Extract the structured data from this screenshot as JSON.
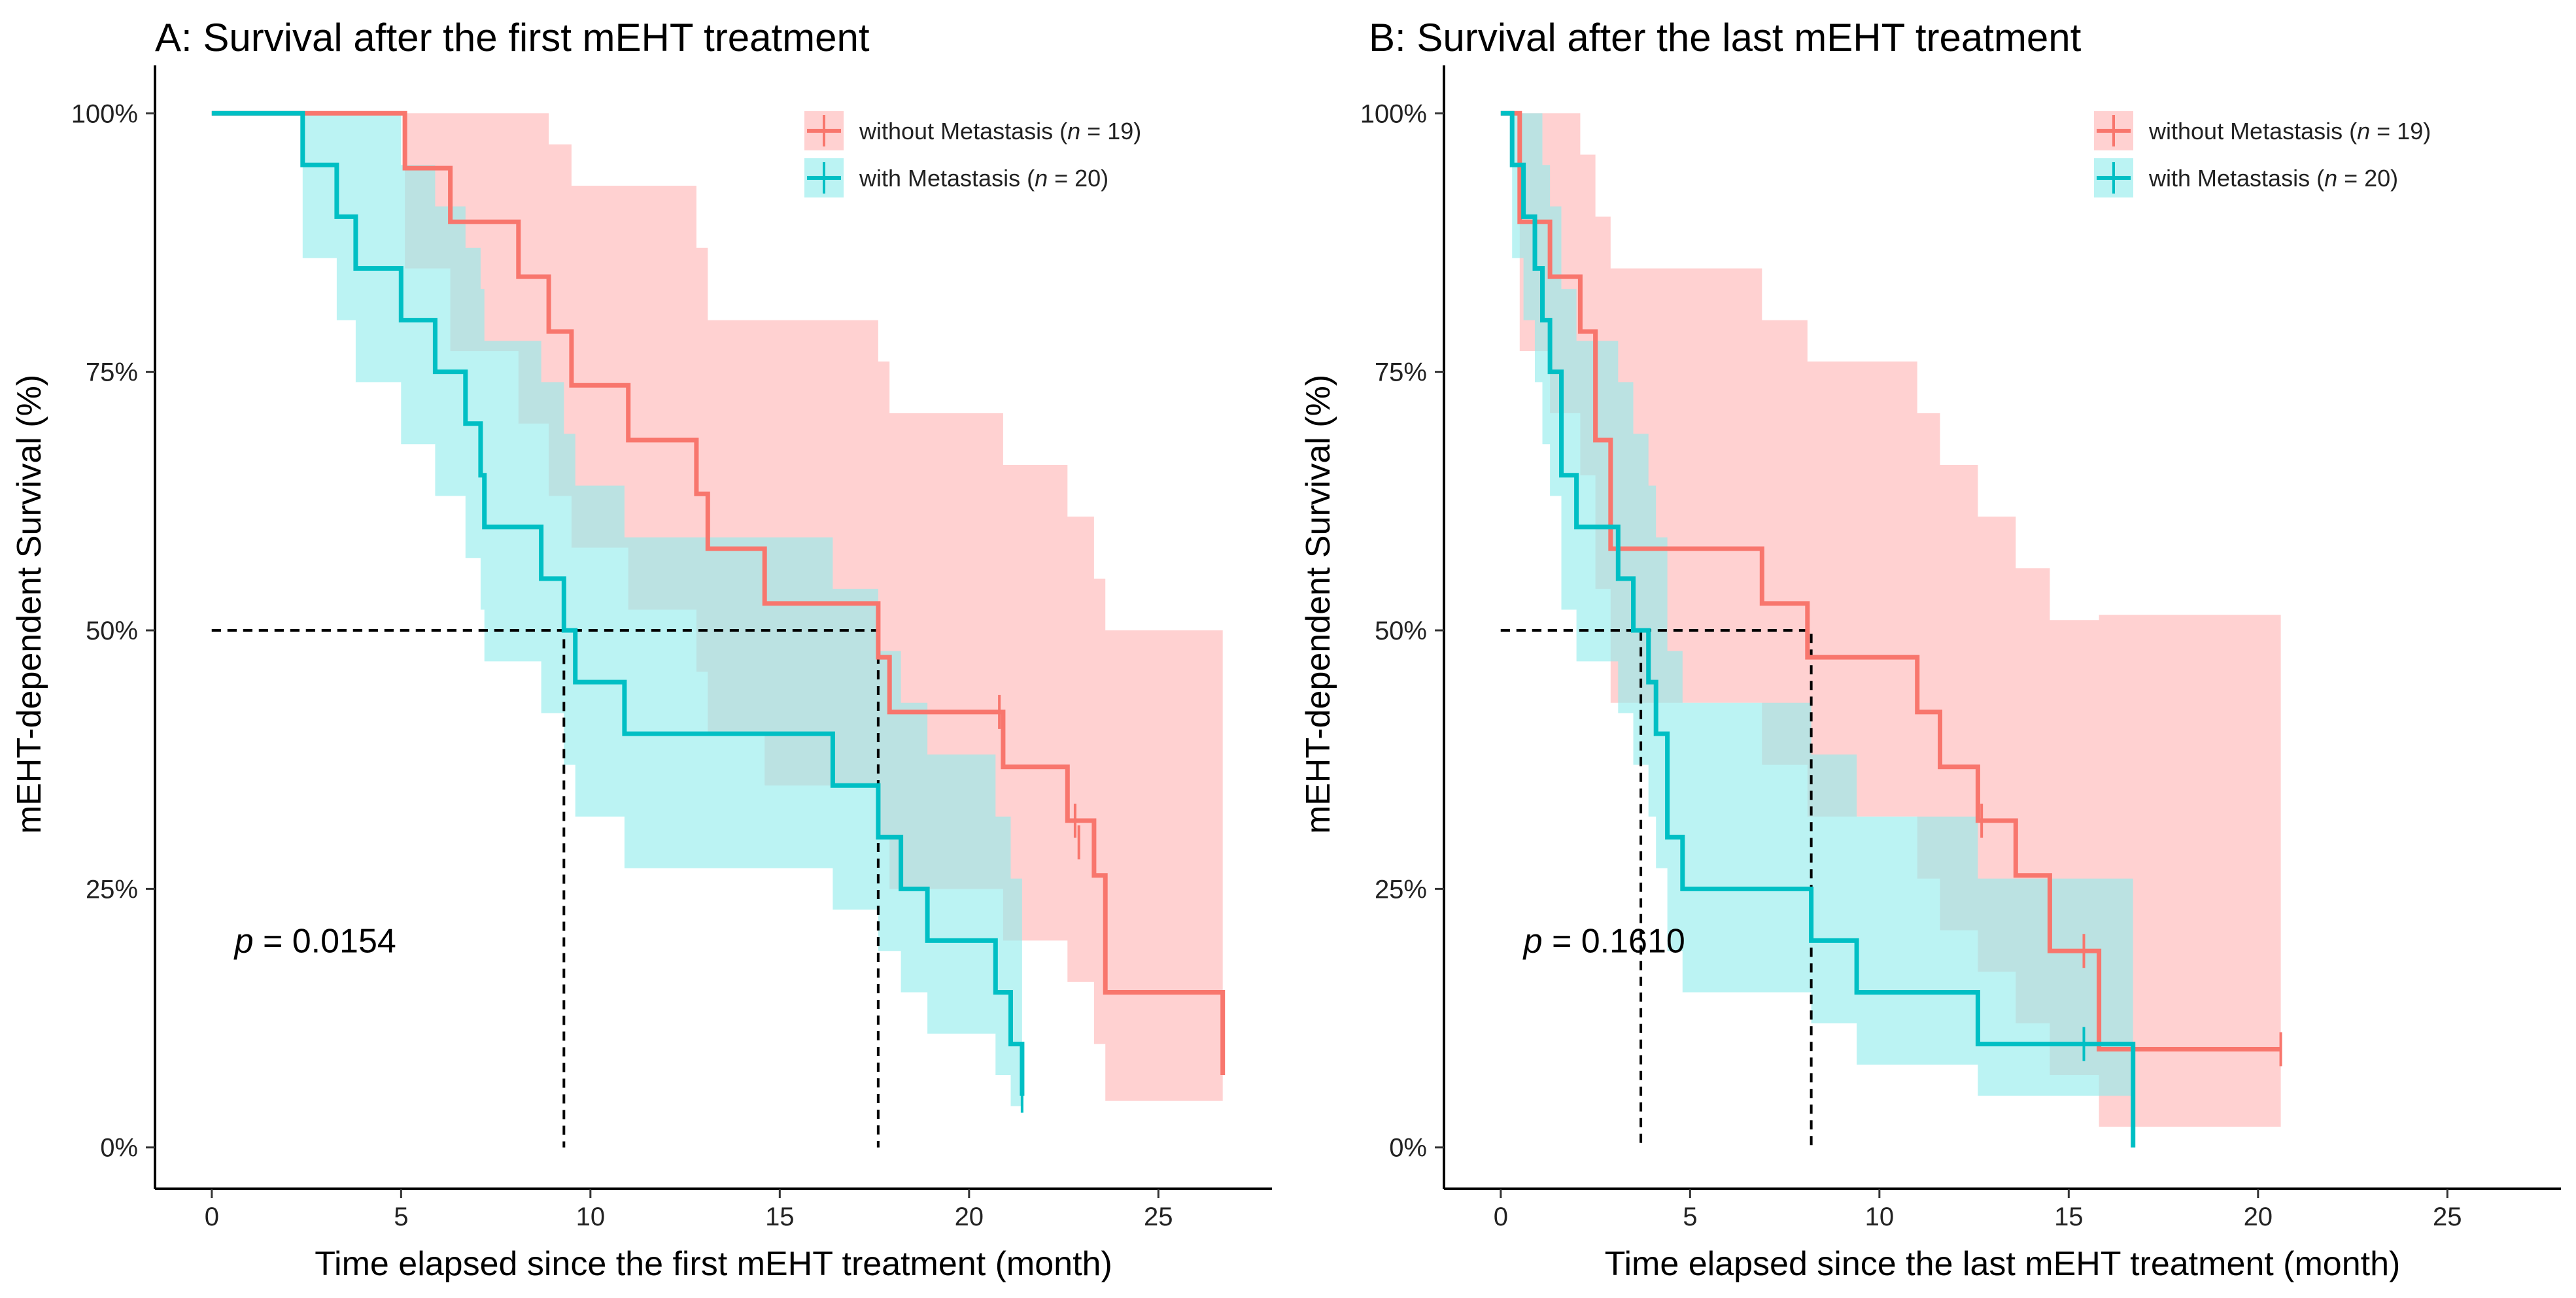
{
  "colors": {
    "without": "#F8766D",
    "with": "#00BFC4",
    "without_band": "#FFCCCC",
    "with_band": "#92EBEC",
    "overlap": "#A9C8C8",
    "median_line": "#000000"
  },
  "chart_data": [
    {
      "type": "line",
      "subtype": "kaplan-meier",
      "title": "A: Survival after the first mEHT treatment",
      "xlabel": "Time elapsed since the first mEHT treatment (month)",
      "ylabel": "mEHT-dependent Survival (%)",
      "xlim": [
        -1.5,
        28
      ],
      "ylim": [
        -4,
        104
      ],
      "xticks": [
        0,
        5,
        10,
        15,
        20,
        25
      ],
      "xtick_labels": [
        "0",
        "5",
        "10",
        "15",
        "20",
        "25"
      ],
      "yticks": [
        0,
        25,
        50,
        75,
        100
      ],
      "ytick_labels": [
        "0%",
        "25%",
        "50%",
        "75%",
        "100%"
      ],
      "p_value": {
        "label": "p",
        "text": " = 0.0154"
      },
      "median_lines": [
        {
          "x": 9.3,
          "y": 50
        },
        {
          "x": 17.6,
          "y": 50
        }
      ],
      "series": [
        {
          "name": "without Metastasis",
          "legend_prefix": "without Metastasis (",
          "legend_n": "n",
          "legend_suffix": " = 19)",
          "color_key": "without",
          "band_key": "without_band",
          "x": [
            0,
            4.9,
            5.1,
            6.3,
            8.1,
            8.9,
            9.1,
            9.5,
            11.0,
            12.8,
            13.1,
            14.6,
            17.6,
            17.9,
            20.8,
            20.9,
            22.6,
            22.9,
            23.3,
            23.6,
            26.7
          ],
          "y": [
            100,
            100,
            94.7,
            89.5,
            84.2,
            78.9,
            78.9,
            73.7,
            68.4,
            63.2,
            57.9,
            52.6,
            47.4,
            42.1,
            42.1,
            36.8,
            31.6,
            31.6,
            26.3,
            15.0,
            7.0
          ],
          "lower": [
            100,
            100,
            85.0,
            77.0,
            70.0,
            63.0,
            63.0,
            58.0,
            52.0,
            46.0,
            40.0,
            35.0,
            30.0,
            25.0,
            25.0,
            20.0,
            16.0,
            16.0,
            10.0,
            4.5,
            1.0
          ],
          "upper": [
            100,
            100,
            100,
            100,
            100,
            97.0,
            97.0,
            93.0,
            93.0,
            87.0,
            80.0,
            80.0,
            76.0,
            71.0,
            71.0,
            66.0,
            61.0,
            61.0,
            55.0,
            50.0,
            47.0
          ],
          "censor": [
            [
              20.8,
              42.1
            ],
            [
              22.8,
              31.6
            ],
            [
              22.9,
              29.5
            ]
          ]
        },
        {
          "name": "with Metastasis",
          "legend_prefix": "with Metastasis (",
          "legend_n": "n",
          "legend_suffix": " = 20)",
          "color_key": "with",
          "band_key": "with_band",
          "x": [
            0,
            2.4,
            3.3,
            3.8,
            5.0,
            5.9,
            6.7,
            7.1,
            7.2,
            8.7,
            9.3,
            9.6,
            10.9,
            16.4,
            17.6,
            18.2,
            18.9,
            20.7,
            21.1,
            21.4
          ],
          "y": [
            100,
            95,
            90,
            85,
            80,
            75,
            70,
            65,
            60,
            55,
            50,
            45,
            40,
            35,
            30,
            25,
            20,
            15,
            10,
            5
          ],
          "lower": [
            100,
            86,
            80,
            74,
            68,
            63,
            57,
            52,
            47,
            42,
            37,
            32,
            27,
            23,
            19,
            15,
            11,
            7,
            4,
            1
          ],
          "upper": [
            100,
            100,
            100,
            100,
            95,
            91,
            87,
            83,
            78,
            74,
            69,
            64,
            59,
            54,
            48,
            43,
            38,
            32,
            26,
            21
          ],
          "censor": [
            [
              21.4,
              5
            ]
          ]
        }
      ]
    },
    {
      "type": "line",
      "subtype": "kaplan-meier",
      "title": "B: Survival after the last mEHT treatment",
      "xlabel": "Time elapsed since the last mEHT treatment (month)",
      "ylabel": "mEHT-dependent Survival (%)",
      "xlim": [
        -1.5,
        28
      ],
      "ylim": [
        -4,
        104
      ],
      "xticks": [
        0,
        5,
        10,
        15,
        20,
        25
      ],
      "xtick_labels": [
        "0",
        "5",
        "10",
        "15",
        "20",
        "25"
      ],
      "yticks": [
        0,
        25,
        50,
        75,
        100
      ],
      "ytick_labels": [
        "0%",
        "25%",
        "50%",
        "75%",
        "100%"
      ],
      "p_value": {
        "label": "p",
        "text": " = 0.1610"
      },
      "median_lines": [
        {
          "x": 3.7,
          "y": 50
        },
        {
          "x": 8.2,
          "y": 50
        }
      ],
      "series": [
        {
          "name": "without Metastasis",
          "legend_prefix": "without Metastasis (",
          "legend_n": "n",
          "legend_suffix": " = 19)",
          "color_key": "without",
          "band_key": "without_band",
          "x": [
            0,
            0.4,
            0.5,
            1.3,
            2.1,
            2.5,
            2.9,
            4.1,
            6.9,
            8.1,
            11.0,
            11.6,
            12.6,
            13.6,
            14.5,
            15.8,
            20.6
          ],
          "y": [
            100,
            100,
            89.5,
            84.2,
            78.9,
            68.4,
            57.9,
            57.9,
            52.6,
            47.4,
            42.1,
            36.8,
            31.6,
            26.3,
            19.0,
            9.5,
            9.5
          ],
          "lower": [
            100,
            100,
            77.0,
            71.0,
            65.0,
            54.0,
            43.0,
            43.0,
            37.0,
            32.0,
            26.0,
            21.0,
            17.0,
            12.0,
            7.0,
            2.0,
            2.0
          ],
          "upper": [
            100,
            100,
            100,
            100,
            96.0,
            90.0,
            85.0,
            85.0,
            80.0,
            76.0,
            71.0,
            66.0,
            61.0,
            56.0,
            51.0,
            51.5,
            51.5
          ],
          "censor": [
            [
              12.7,
              31.6
            ],
            [
              15.4,
              19.0
            ],
            [
              20.6,
              9.5
            ]
          ]
        },
        {
          "name": "with Metastasis",
          "legend_prefix": "with Metastasis (",
          "legend_n": "n",
          "legend_suffix": " = 20)",
          "color_key": "with",
          "band_key": "with_band",
          "x": [
            0,
            0.3,
            0.6,
            0.9,
            1.1,
            1.3,
            1.6,
            2.0,
            3.1,
            3.5,
            3.9,
            4.1,
            4.4,
            4.8,
            8.2,
            9.4,
            12.6,
            16.7
          ],
          "y": [
            100,
            95,
            90,
            85,
            80,
            75,
            65,
            60,
            55,
            50,
            45,
            40,
            30,
            25,
            20,
            15,
            10,
            0
          ],
          "lower": [
            100,
            86,
            80,
            74,
            68,
            63,
            52,
            47,
            42,
            37,
            32,
            27,
            19,
            15,
            12,
            8,
            5,
            0
          ],
          "upper": [
            100,
            100,
            100,
            100,
            95,
            91,
            83,
            78,
            74,
            69,
            64,
            59,
            48,
            43,
            38,
            32,
            26,
            0
          ],
          "censor": [
            [
              15.4,
              10
            ]
          ]
        }
      ]
    }
  ]
}
